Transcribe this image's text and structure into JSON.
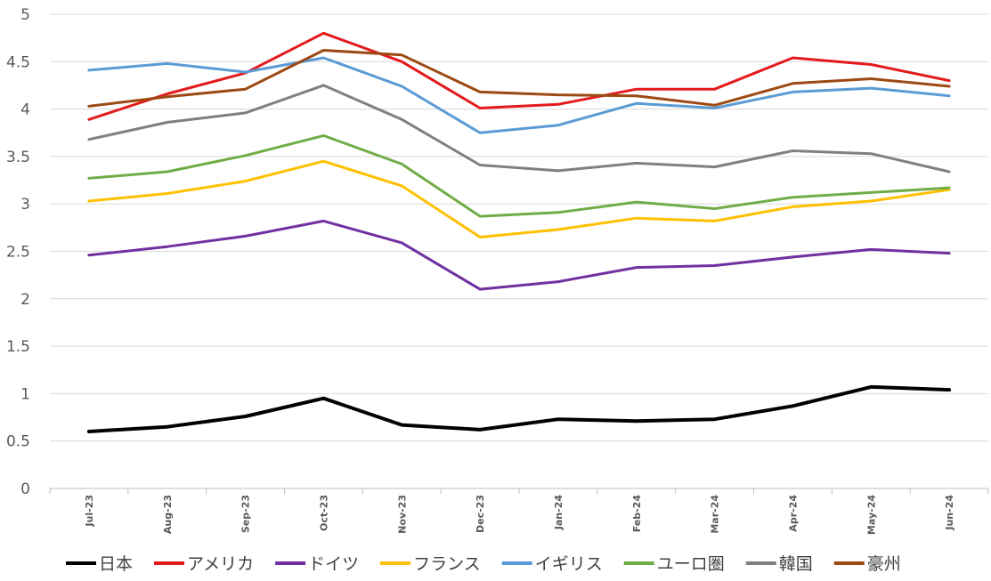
{
  "chart_data": {
    "type": "line",
    "title": "",
    "xlabel": "",
    "ylabel": "",
    "ylim": [
      0,
      5
    ],
    "yticks": [
      "0",
      "0.5",
      "1",
      "1.5",
      "2",
      "2.5",
      "3",
      "3.5",
      "4",
      "4.5",
      "5"
    ],
    "grid": "horizontal",
    "legend_position": "bottom",
    "categories": [
      "Jul-23",
      "Aug-23",
      "Sep-23",
      "Oct-23",
      "Nov-23",
      "Dec-23",
      "Jan-24",
      "Feb-24",
      "Mar-24",
      "Apr-24",
      "May-24",
      "Jun-24"
    ],
    "series": [
      {
        "name": "日本",
        "color": "#000000",
        "width": 4,
        "values": [
          0.6,
          0.65,
          0.76,
          0.95,
          0.67,
          0.62,
          0.73,
          0.71,
          0.73,
          0.87,
          1.07,
          1.04
        ]
      },
      {
        "name": "アメリカ",
        "color": "#e31a1c",
        "width": 3,
        "values": [
          3.89,
          4.16,
          4.38,
          4.8,
          4.5,
          4.01,
          4.05,
          4.21,
          4.21,
          4.54,
          4.47,
          4.3
        ]
      },
      {
        "name": "ドイツ",
        "color": "#7030a0",
        "width": 3,
        "values": [
          2.46,
          2.55,
          2.66,
          2.82,
          2.59,
          2.1,
          2.18,
          2.33,
          2.35,
          2.44,
          2.52,
          2.48
        ]
      },
      {
        "name": "フランス",
        "color": "#ffc000",
        "width": 3,
        "values": [
          3.03,
          3.11,
          3.24,
          3.45,
          3.19,
          2.65,
          2.73,
          2.85,
          2.82,
          2.97,
          3.03,
          3.15
        ]
      },
      {
        "name": "イギリス",
        "color": "#5b9bd5",
        "width": 3,
        "values": [
          4.41,
          4.48,
          4.39,
          4.54,
          4.24,
          3.75,
          3.83,
          4.06,
          4.01,
          4.18,
          4.22,
          4.14
        ]
      },
      {
        "name": "ユーロ圏",
        "color": "#70ad47",
        "width": 3,
        "values": [
          3.27,
          3.34,
          3.51,
          3.72,
          3.42,
          2.87,
          2.91,
          3.02,
          2.95,
          3.07,
          3.12,
          3.17
        ]
      },
      {
        "name": "韓国",
        "color": "#808080",
        "width": 3,
        "values": [
          3.68,
          3.86,
          3.96,
          4.25,
          3.89,
          3.41,
          3.35,
          3.43,
          3.39,
          3.56,
          3.53,
          3.34
        ]
      },
      {
        "name": "豪州",
        "color": "#9c4a12",
        "width": 3,
        "values": [
          4.03,
          4.13,
          4.21,
          4.62,
          4.57,
          4.18,
          4.15,
          4.14,
          4.04,
          4.27,
          4.32,
          4.24
        ]
      }
    ]
  }
}
